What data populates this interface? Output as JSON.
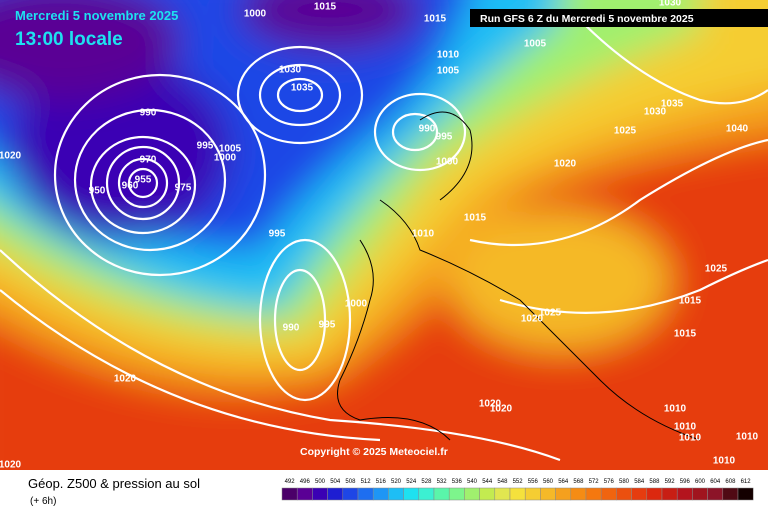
{
  "header": {
    "date": "Mercredi 5 novembre 2025",
    "time": "13:00 locale",
    "run": "Run GFS 6 Z du Mercredi 5 novembre 2025"
  },
  "copyright": "Copyright © 2025 Meteociel.fr",
  "footer": {
    "title": "Géop. Z500 & pression au sol",
    "subtitle": "(+ 6h)"
  },
  "legend": {
    "values": [
      "492",
      "496",
      "500",
      "504",
      "508",
      "512",
      "516",
      "520",
      "524",
      "528",
      "532",
      "536",
      "540",
      "544",
      "548",
      "552",
      "556",
      "560",
      "564",
      "568",
      "572",
      "576",
      "580",
      "584",
      "588",
      "592",
      "596",
      "600",
      "604",
      "608",
      "612"
    ],
    "colors": [
      "#4b0069",
      "#5a0095",
      "#3a00b4",
      "#1e1ed2",
      "#1e46e6",
      "#1e6ef0",
      "#1e96f5",
      "#1ebef5",
      "#1ee1f0",
      "#3cf0d2",
      "#5af5aa",
      "#7df58c",
      "#a0f06e",
      "#c3eb50",
      "#e1e650",
      "#f5e13c",
      "#f5cd32",
      "#f5b928",
      "#f5a01e",
      "#f58c14",
      "#f5780f",
      "#f0640f",
      "#eb500f",
      "#e63c0f",
      "#dc280f",
      "#c81e14",
      "#b4141e",
      "#a0141e",
      "#8c1428",
      "#500a14",
      "#140000"
    ]
  },
  "isobars": [
    "1000",
    "1015",
    "1015",
    "1005",
    "1010",
    "1005",
    "1030",
    "1035",
    "990",
    "995",
    "1005",
    "1000",
    "990",
    "995",
    "1000",
    "1020",
    "1025",
    "1030",
    "1035",
    "1040",
    "1020",
    "970",
    "955",
    "960",
    "975",
    "950",
    "995",
    "1015",
    "1010",
    "1000",
    "990",
    "995",
    "1025",
    "1020",
    "1025",
    "1015",
    "1015",
    "1020",
    "1020",
    "1020",
    "1010",
    "1010",
    "1010",
    "1010",
    "1010",
    "1020",
    "1030"
  ]
}
